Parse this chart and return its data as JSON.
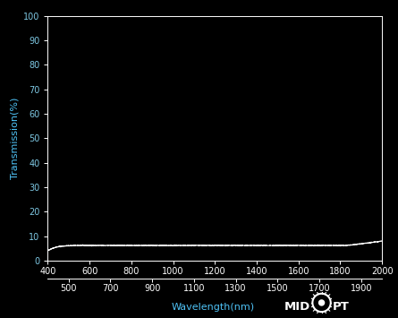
{
  "background_color": "#000000",
  "plot_bg_color": "#000000",
  "line_color": "#ffffff",
  "line_width": 0.8,
  "xlabel": "Wavelength(nm)",
  "ylabel": "Transmission(%)",
  "xlabel_color": "#4fc3f7",
  "ylabel_color": "#4fc3f7",
  "tick_color": "#ffffff",
  "tick_label_color": "#7ec8e3",
  "xlim": [
    400,
    2000
  ],
  "ylim": [
    0,
    100
  ],
  "yticks": [
    0,
    10,
    20,
    30,
    40,
    50,
    60,
    70,
    80,
    90,
    100
  ],
  "xticks_row1": [
    400,
    600,
    800,
    1000,
    1200,
    1400,
    1600,
    1800,
    2000
  ],
  "xticks_row2": [
    500,
    700,
    900,
    1100,
    1300,
    1500,
    1700,
    1900
  ],
  "transmission_flat": 6.25,
  "x_start": 400,
  "x_end": 2000,
  "midopt_color": "#ffffff",
  "tick_fontsize": 7,
  "label_fontsize": 8
}
